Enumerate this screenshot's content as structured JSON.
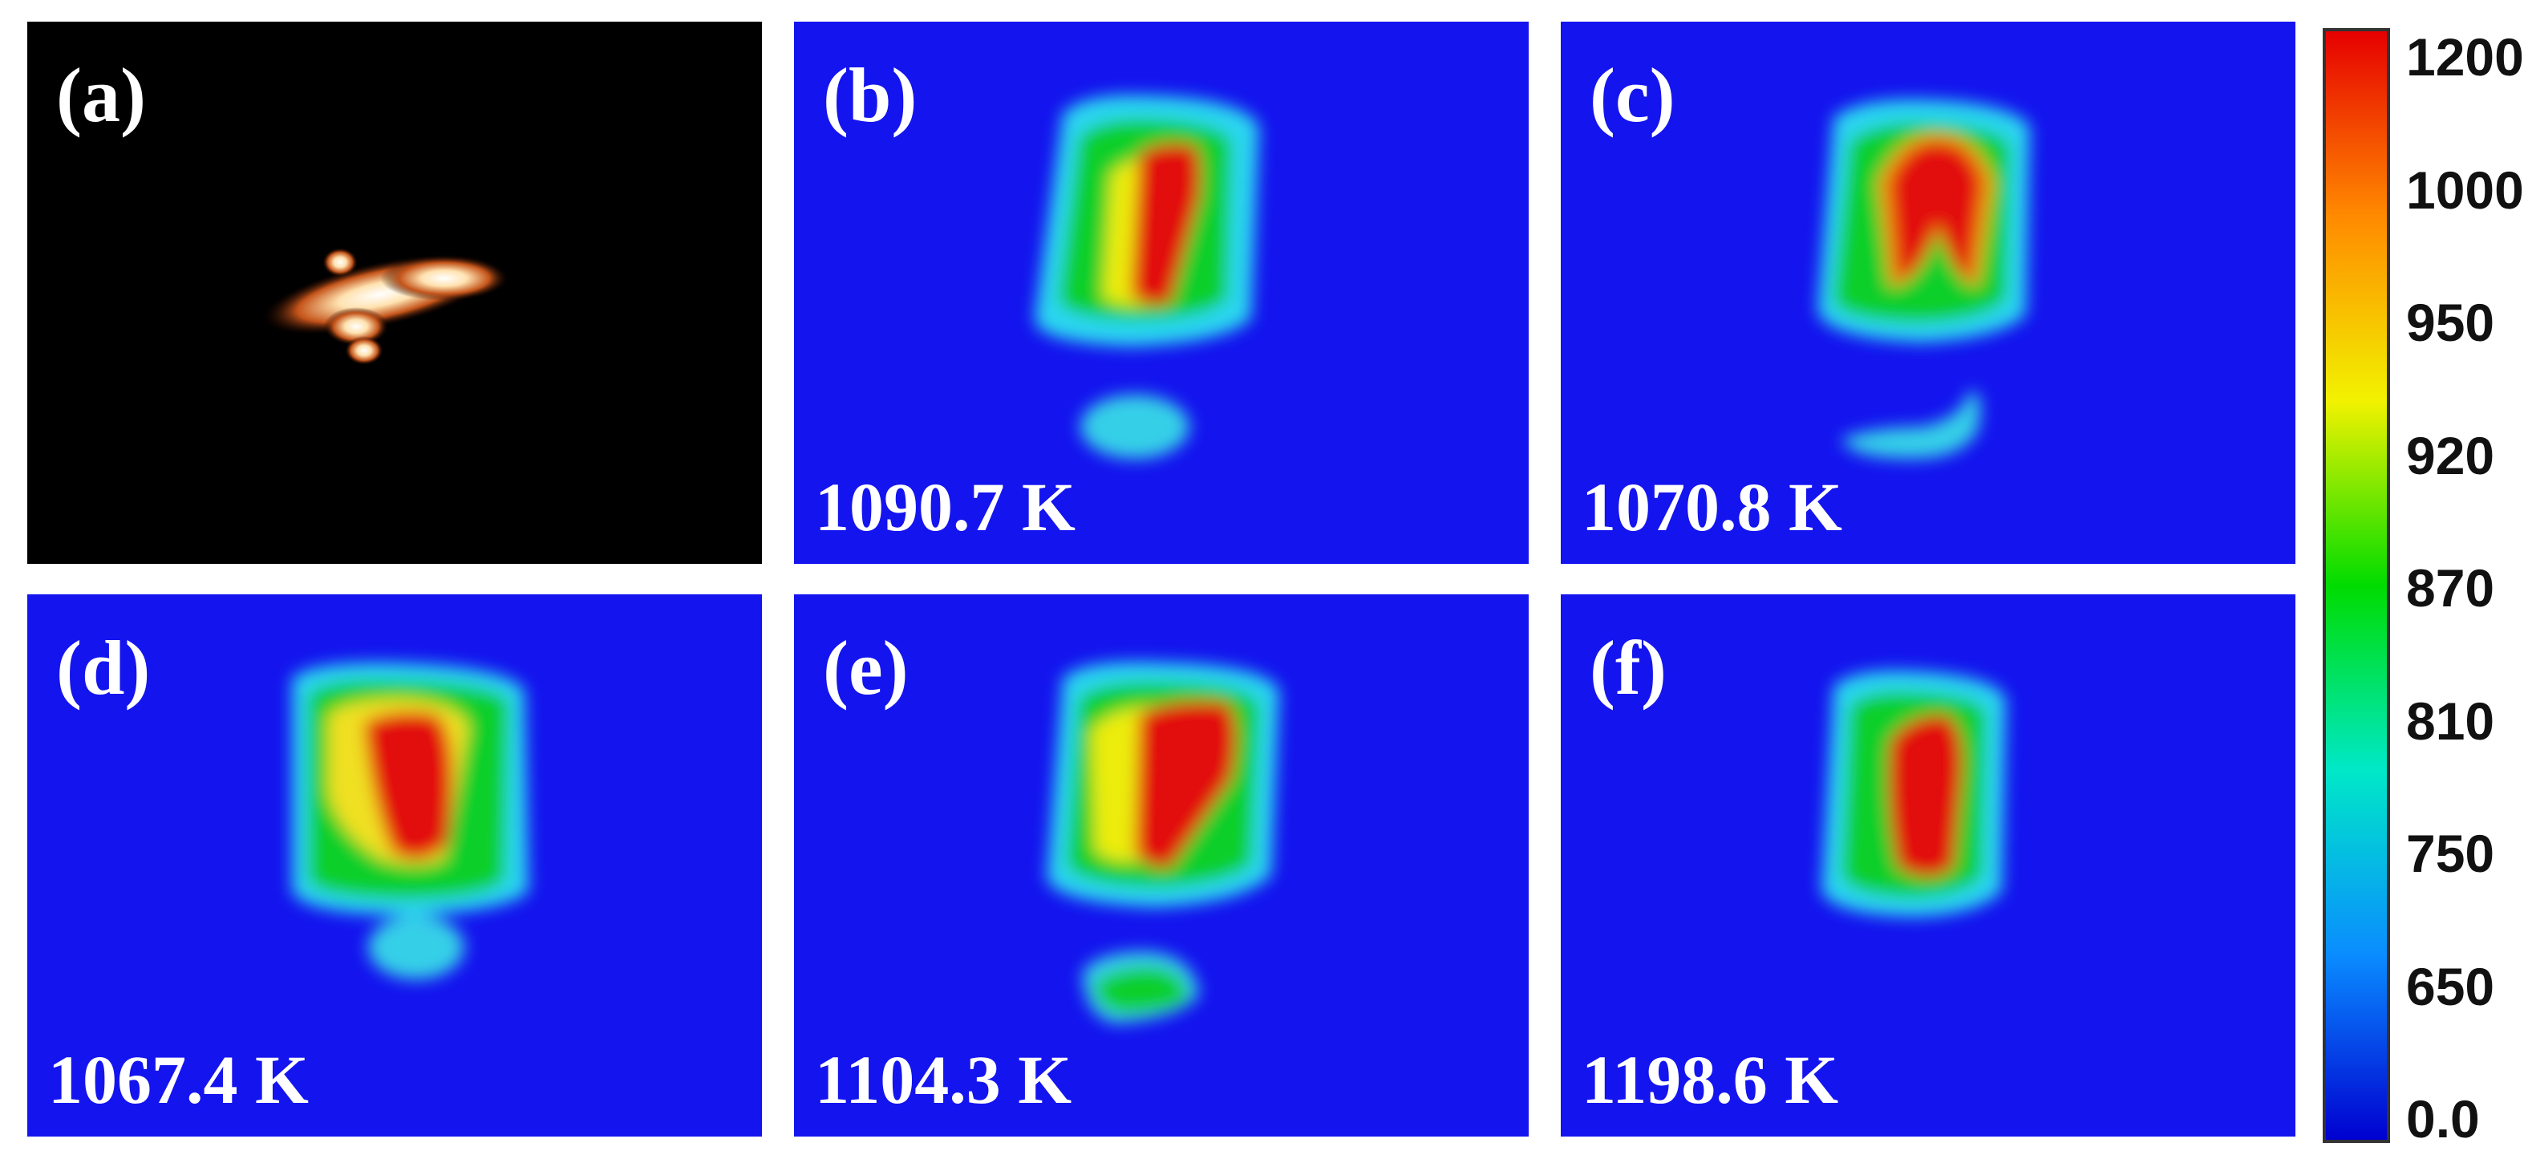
{
  "panels": [
    {
      "label": "(a)",
      "temperature": ""
    },
    {
      "label": "(b)",
      "temperature": "1090.7 K"
    },
    {
      "label": "(c)",
      "temperature": "1070.8 K"
    },
    {
      "label": "(d)",
      "temperature": "1067.4 K"
    },
    {
      "label": "(e)",
      "temperature": "1104.3 K"
    },
    {
      "label": "(f)",
      "temperature": "1198.6 K"
    }
  ],
  "colorbar": {
    "ticks": [
      "1200",
      "1000",
      "950",
      "920",
      "870",
      "810",
      "750",
      "650",
      "0.0"
    ],
    "colors": [
      "#e60000",
      "#ff8a00",
      "#f2f200",
      "#00dc00",
      "#00e8c8",
      "#0a8cff",
      "#0000d0"
    ]
  },
  "colors": {
    "background": "#1414ee",
    "photo_background": "#000000"
  }
}
